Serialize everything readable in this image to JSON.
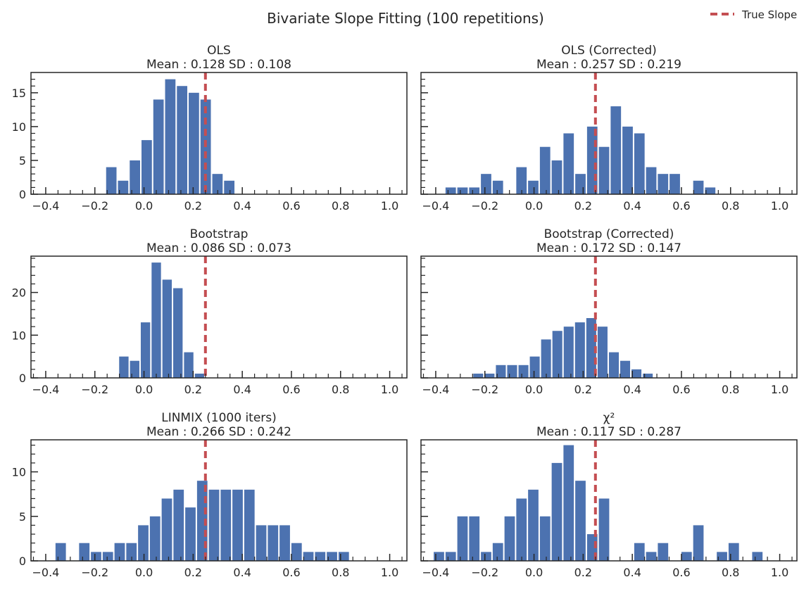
{
  "figure": {
    "title": "Bivariate Slope Fitting (100 repetitions)",
    "legend_label": "True Slope",
    "colors": {
      "bar": "#4c72b0",
      "true_slope": "#c44e52",
      "axis": "#262626"
    }
  },
  "chart_data": [
    {
      "type": "bar",
      "title": "OLS",
      "subtitle": "Mean : 0.128 SD : 0.108",
      "xlim": [
        -0.46,
        1.07
      ],
      "ylim": [
        0,
        18
      ],
      "xticks": [
        "−0.4",
        "−0.2",
        "0.0",
        "0.2",
        "0.4",
        "0.6",
        "0.8",
        "1.0"
      ],
      "xtick_values": [
        -0.4,
        -0.2,
        0.0,
        0.2,
        0.4,
        0.6,
        0.8,
        1.0
      ],
      "yticks": [
        "0",
        "5",
        "10",
        "15"
      ],
      "ytick_values": [
        0,
        5,
        10,
        15
      ],
      "true_slope": 0.25,
      "x": [
        -0.133,
        -0.085,
        -0.037,
        0.011,
        0.059,
        0.107,
        0.155,
        0.203,
        0.251,
        0.299,
        0.347
      ],
      "values": [
        4,
        2,
        5,
        8,
        14,
        17,
        16,
        15,
        14,
        3,
        2
      ]
    },
    {
      "type": "bar",
      "title": "OLS (Corrected)",
      "subtitle": "Mean : 0.257 SD : 0.219",
      "xlim": [
        -0.46,
        1.07
      ],
      "ylim": [
        0,
        18
      ],
      "xticks": [
        "−0.4",
        "−0.2",
        "0.0",
        "0.2",
        "0.4",
        "0.6",
        "0.8",
        "1.0"
      ],
      "xtick_values": [
        -0.4,
        -0.2,
        0.0,
        0.2,
        0.4,
        0.6,
        0.8,
        1.0
      ],
      "yticks": [],
      "ytick_values": [
        0,
        5,
        10,
        15
      ],
      "true_slope": 0.25,
      "x": [
        -0.339,
        -0.291,
        -0.243,
        -0.195,
        -0.147,
        -0.099,
        -0.051,
        -0.003,
        0.045,
        0.093,
        0.141,
        0.189,
        0.237,
        0.285,
        0.333,
        0.381,
        0.429,
        0.477,
        0.525,
        0.573,
        0.621,
        0.669,
        0.717
      ],
      "values": [
        1,
        1,
        1,
        3,
        2,
        0,
        4,
        2,
        7,
        5,
        9,
        3,
        10,
        7,
        13,
        10,
        9,
        4,
        3,
        3,
        0,
        2,
        1
      ]
    },
    {
      "type": "bar",
      "title": "Bootstrap",
      "subtitle": "Mean : 0.086 SD : 0.073",
      "xlim": [
        -0.46,
        1.07
      ],
      "ylim": [
        0,
        28.5
      ],
      "xticks": [
        "−0.4",
        "−0.2",
        "0.0",
        "0.2",
        "0.4",
        "0.6",
        "0.8",
        "1.0"
      ],
      "xtick_values": [
        -0.4,
        -0.2,
        0.0,
        0.2,
        0.4,
        0.6,
        0.8,
        1.0
      ],
      "yticks": [
        "0",
        "10",
        "20"
      ],
      "ytick_values": [
        0,
        10,
        20
      ],
      "true_slope": 0.25,
      "x": [
        -0.082,
        -0.038,
        0.006,
        0.05,
        0.094,
        0.138,
        0.182,
        0.226
      ],
      "values": [
        5,
        4,
        13,
        27,
        23,
        21,
        6,
        1
      ]
    },
    {
      "type": "bar",
      "title": "Bootstrap (Corrected)",
      "subtitle": "Mean : 0.172 SD : 0.147",
      "xlim": [
        -0.46,
        1.07
      ],
      "ylim": [
        0,
        28.5
      ],
      "xticks": [
        "−0.4",
        "−0.2",
        "0.0",
        "0.2",
        "0.4",
        "0.6",
        "0.8",
        "1.0"
      ],
      "xtick_values": [
        -0.4,
        -0.2,
        0.0,
        0.2,
        0.4,
        0.6,
        0.8,
        1.0
      ],
      "yticks": [],
      "ytick_values": [
        0,
        10,
        20
      ],
      "true_slope": 0.25,
      "x": [
        -0.227,
        -0.181,
        -0.135,
        -0.089,
        -0.043,
        0.003,
        0.049,
        0.095,
        0.141,
        0.187,
        0.233,
        0.279,
        0.325,
        0.371,
        0.417,
        0.463
      ],
      "values": [
        1,
        1,
        3,
        3,
        3,
        5,
        9,
        11,
        12,
        13,
        14,
        12,
        6,
        4,
        2,
        1
      ]
    },
    {
      "type": "bar",
      "title": "LINMIX (1000 iters)",
      "subtitle": "Mean : 0.266 SD : 0.242",
      "xlim": [
        -0.46,
        1.07
      ],
      "ylim": [
        0,
        13.6
      ],
      "xticks": [
        "−0.4",
        "−0.2",
        "0.0",
        "0.2",
        "0.4",
        "0.6",
        "0.8",
        "1.0"
      ],
      "xtick_values": [
        -0.4,
        -0.2,
        0.0,
        0.2,
        0.4,
        0.6,
        0.8,
        1.0
      ],
      "yticks": [
        "0",
        "5",
        "10"
      ],
      "ytick_values": [
        0,
        5,
        10
      ],
      "true_slope": 0.25,
      "x": [
        -0.339,
        -0.291,
        -0.243,
        -0.195,
        -0.147,
        -0.099,
        -0.051,
        -0.003,
        0.045,
        0.093,
        0.141,
        0.189,
        0.237,
        0.285,
        0.333,
        0.381,
        0.429,
        0.477,
        0.525,
        0.573,
        0.621,
        0.669,
        0.717,
        0.765,
        0.813
      ],
      "values": [
        2,
        0,
        2,
        1,
        1,
        2,
        2,
        4,
        5,
        7,
        8,
        6,
        9,
        8,
        8,
        8,
        8,
        4,
        4,
        4,
        2,
        1,
        1,
        1,
        1
      ]
    },
    {
      "type": "bar",
      "title": "χ²",
      "subtitle": "Mean : 0.117 SD : 0.287",
      "xlim": [
        -0.46,
        1.07
      ],
      "ylim": [
        0,
        13.6
      ],
      "xticks": [
        "−0.4",
        "−0.2",
        "0.0",
        "0.2",
        "0.4",
        "0.6",
        "0.8",
        "1.0"
      ],
      "xtick_values": [
        -0.4,
        -0.2,
        0.0,
        0.2,
        0.4,
        0.6,
        0.8,
        1.0
      ],
      "yticks": [],
      "ytick_values": [
        0,
        5,
        10
      ],
      "true_slope": 0.25,
      "x": [
        -0.387,
        -0.339,
        -0.291,
        -0.243,
        -0.195,
        -0.147,
        -0.099,
        -0.051,
        -0.003,
        0.045,
        0.093,
        0.141,
        0.189,
        0.237,
        0.285,
        0.333,
        0.381,
        0.429,
        0.477,
        0.525,
        0.573,
        0.621,
        0.669,
        0.717,
        0.765,
        0.813,
        0.861,
        0.909
      ],
      "values": [
        1,
        1,
        5,
        5,
        1,
        2,
        5,
        7,
        8,
        5,
        11,
        13,
        9,
        3,
        7,
        0,
        0,
        2,
        1,
        2,
        0,
        1,
        4,
        0,
        1,
        2,
        0,
        1
      ]
    }
  ]
}
